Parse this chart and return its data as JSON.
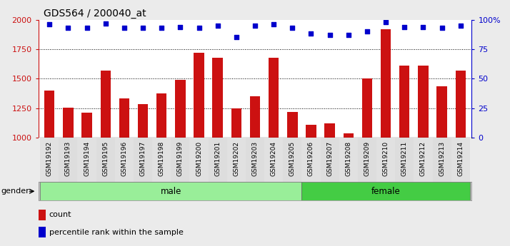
{
  "title": "GDS564 / 200040_at",
  "categories": [
    "GSM19192",
    "GSM19193",
    "GSM19194",
    "GSM19195",
    "GSM19196",
    "GSM19197",
    "GSM19198",
    "GSM19199",
    "GSM19200",
    "GSM19201",
    "GSM19202",
    "GSM19203",
    "GSM19204",
    "GSM19205",
    "GSM19206",
    "GSM19207",
    "GSM19208",
    "GSM19209",
    "GSM19210",
    "GSM19211",
    "GSM19212",
    "GSM19213",
    "GSM19214"
  ],
  "bar_values": [
    1400,
    1255,
    1215,
    1570,
    1335,
    1285,
    1375,
    1490,
    1720,
    1680,
    1250,
    1350,
    1680,
    1220,
    1110,
    1125,
    1035,
    1500,
    1920,
    1610,
    1610,
    1435,
    1570
  ],
  "dot_values": [
    96,
    93,
    93,
    97,
    93,
    93,
    93,
    94,
    93,
    95,
    85,
    95,
    96,
    93,
    88,
    87,
    87,
    90,
    98,
    94,
    94,
    93,
    95
  ],
  "gender_groups": [
    {
      "label": "male",
      "start": 0,
      "end": 14,
      "color": "#99ee99"
    },
    {
      "label": "female",
      "start": 14,
      "end": 23,
      "color": "#44cc44"
    }
  ],
  "bar_color": "#cc1111",
  "dot_color": "#0000cc",
  "ylim_left": [
    1000,
    2000
  ],
  "ylim_right": [
    0,
    100
  ],
  "yticks_left": [
    1000,
    1250,
    1500,
    1750,
    2000
  ],
  "yticks_right": [
    0,
    25,
    50,
    75,
    100
  ],
  "ytick_labels_right": [
    "0",
    "25",
    "50",
    "75",
    "100%"
  ],
  "grid_values": [
    1250,
    1500,
    1750
  ],
  "title_fontsize": 10,
  "axis_color_left": "#cc1111",
  "axis_color_right": "#0000cc",
  "legend_items": [
    {
      "label": "count",
      "color": "#cc1111"
    },
    {
      "label": "percentile rank within the sample",
      "color": "#0000cc"
    }
  ],
  "gender_label": "gender",
  "bg_color": "#ebebeb",
  "plot_bg": "#ffffff"
}
